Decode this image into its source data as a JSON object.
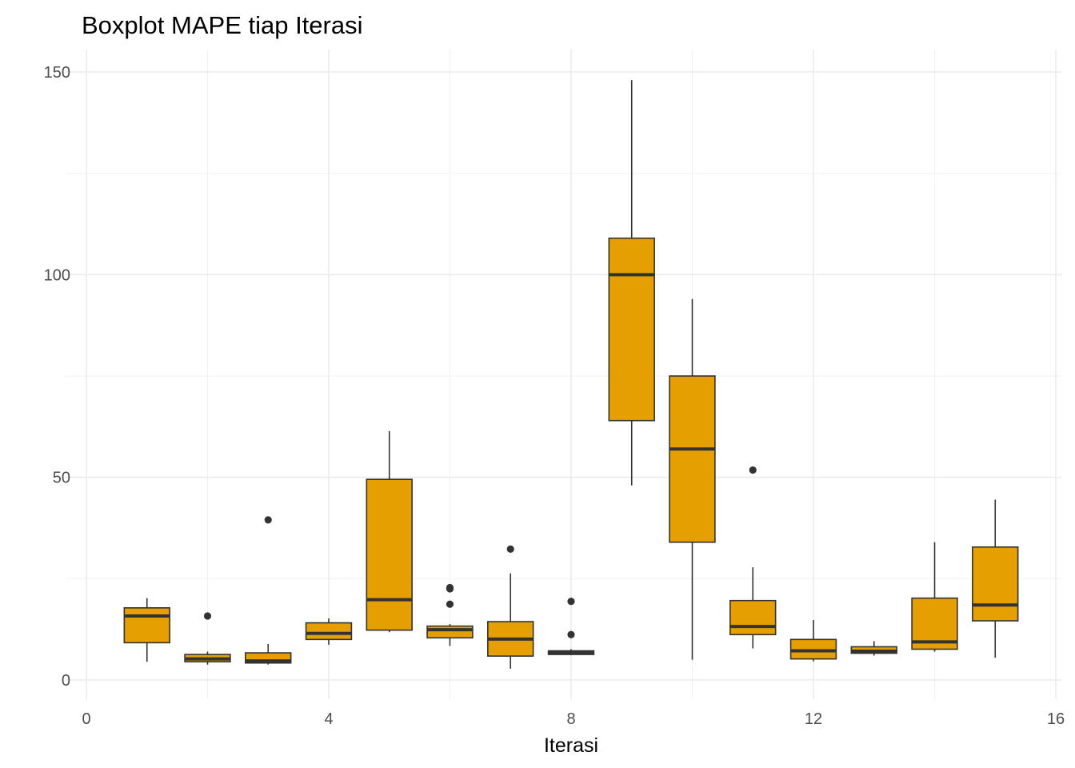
{
  "chart_data": {
    "type": "boxplot",
    "title": "Boxplot MAPE tiap Iterasi",
    "xlabel": "Iterasi",
    "ylabel": "",
    "xlim": [
      0,
      16
    ],
    "ylim": [
      0,
      150
    ],
    "x_ticks": [
      {
        "value": 0,
        "label": "0"
      },
      {
        "value": 4,
        "label": "4"
      },
      {
        "value": 8,
        "label": "8"
      },
      {
        "value": 12,
        "label": "12"
      },
      {
        "value": 16,
        "label": "16"
      }
    ],
    "y_ticks": [
      {
        "value": 0,
        "label": "0"
      },
      {
        "value": 50,
        "label": "50"
      },
      {
        "value": 100,
        "label": "100"
      },
      {
        "value": 150,
        "label": "150"
      }
    ],
    "grid": true,
    "legend": "none",
    "fill_color": "#E69F00",
    "line_color": "#333333",
    "boxes": [
      {
        "x": 1,
        "min": 4.5,
        "q1": 9.2,
        "median": 15.8,
        "q3": 17.8,
        "max": 20.2,
        "outliers": []
      },
      {
        "x": 2,
        "min": 3.8,
        "q1": 4.5,
        "median": 5.2,
        "q3": 6.3,
        "max": 7.0,
        "outliers": [
          15.8
        ]
      },
      {
        "x": 3,
        "min": 3.8,
        "q1": 4.2,
        "median": 4.7,
        "q3": 6.7,
        "max": 8.9,
        "outliers": [
          39.5
        ]
      },
      {
        "x": 4,
        "min": 8.7,
        "q1": 10.0,
        "median": 11.5,
        "q3": 14.1,
        "max": 15.2,
        "outliers": []
      },
      {
        "x": 5,
        "min": 11.8,
        "q1": 12.3,
        "median": 19.8,
        "q3": 49.5,
        "max": 61.4,
        "outliers": []
      },
      {
        "x": 6,
        "min": 8.4,
        "q1": 10.4,
        "median": 12.4,
        "q3": 13.3,
        "max": 13.8,
        "outliers": [
          18.7,
          22.5,
          22.8
        ]
      },
      {
        "x": 7,
        "min": 2.8,
        "q1": 5.9,
        "median": 10.1,
        "q3": 14.4,
        "max": 26.3,
        "outliers": [
          32.3
        ]
      },
      {
        "x": 8,
        "min": 6.1,
        "q1": 6.3,
        "median": 6.8,
        "q3": 7.2,
        "max": 7.6,
        "outliers": [
          11.2,
          19.4
        ]
      },
      {
        "x": 9,
        "min": 48.0,
        "q1": 64.0,
        "median": 100.0,
        "q3": 109.0,
        "max": 148.0,
        "outliers": []
      },
      {
        "x": 10,
        "min": 5.0,
        "q1": 34.0,
        "median": 57.0,
        "q3": 75.0,
        "max": 94.0,
        "outliers": []
      },
      {
        "x": 11,
        "min": 7.8,
        "q1": 11.2,
        "median": 13.2,
        "q3": 19.6,
        "max": 27.8,
        "outliers": [
          51.8
        ]
      },
      {
        "x": 12,
        "min": 4.6,
        "q1": 5.2,
        "median": 7.2,
        "q3": 10.0,
        "max": 14.8,
        "outliers": []
      },
      {
        "x": 13,
        "min": 6.0,
        "q1": 6.6,
        "median": 7.1,
        "q3": 8.2,
        "max": 9.6,
        "outliers": []
      },
      {
        "x": 14,
        "min": 7.0,
        "q1": 7.6,
        "median": 9.4,
        "q3": 20.2,
        "max": 34.0,
        "outliers": []
      },
      {
        "x": 15,
        "min": 5.5,
        "q1": 14.6,
        "median": 18.5,
        "q3": 32.8,
        "max": 44.5,
        "outliers": []
      }
    ]
  }
}
